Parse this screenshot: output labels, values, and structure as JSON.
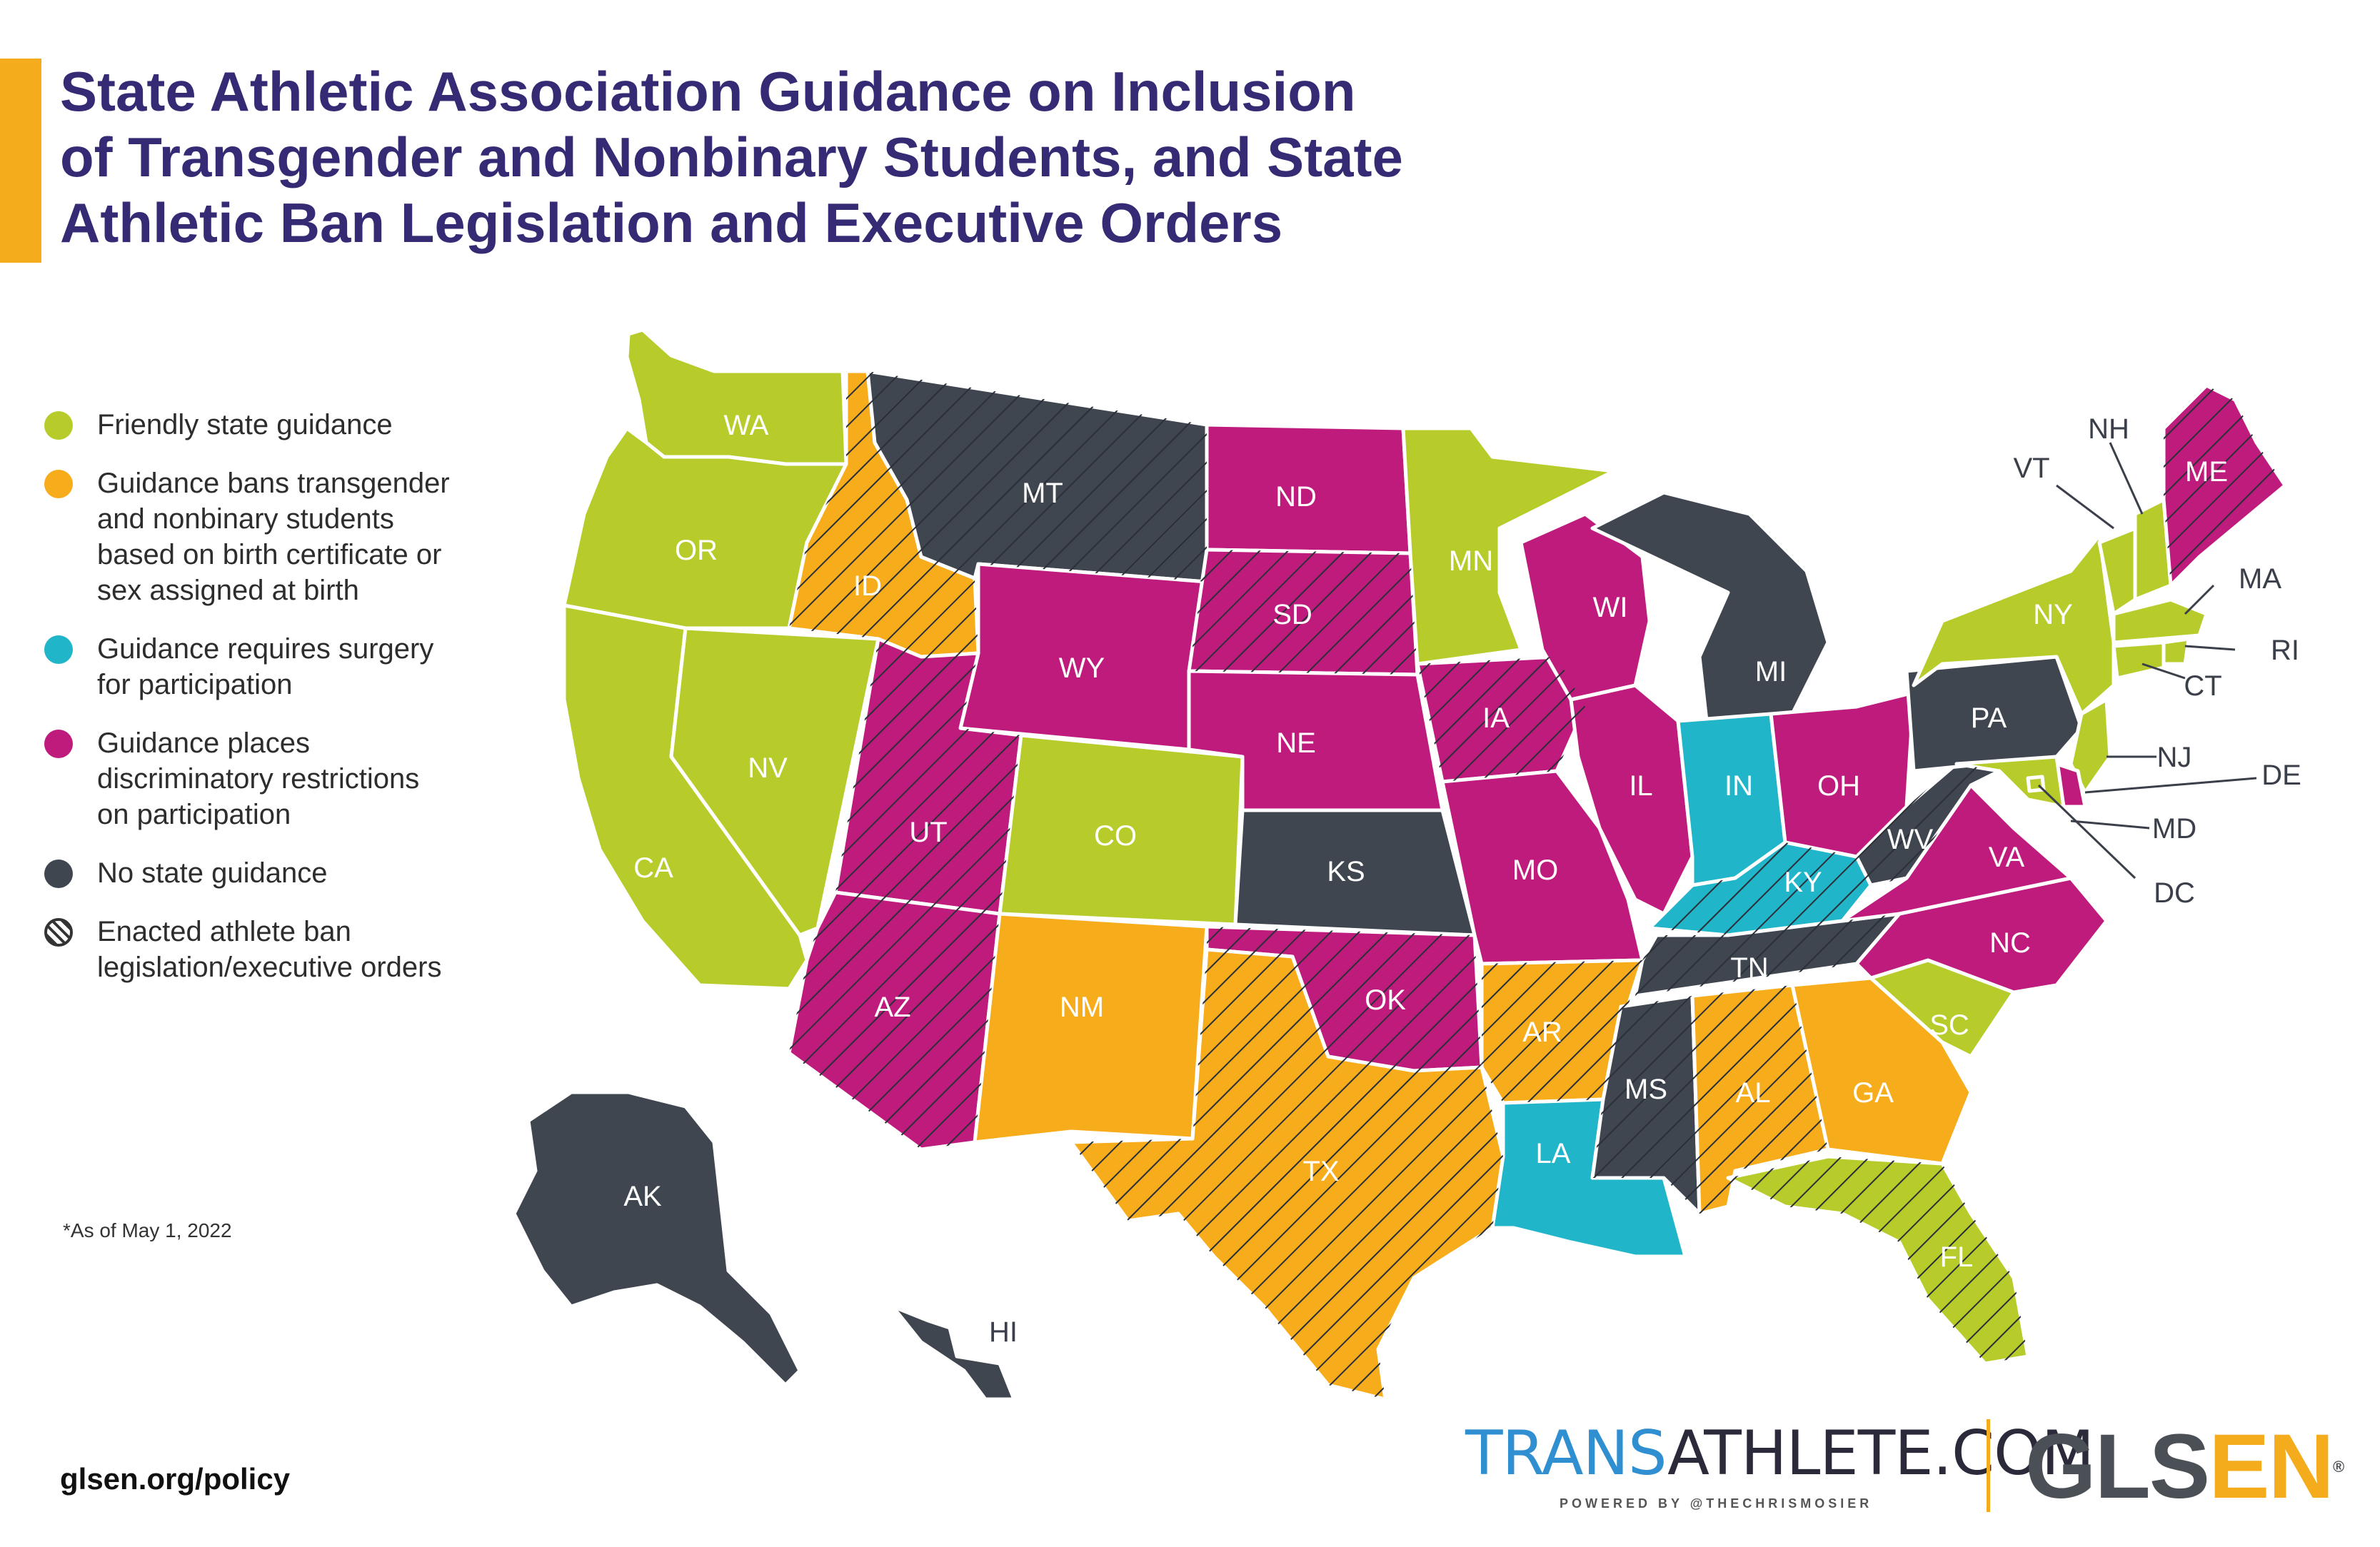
{
  "title_lines": [
    "State Athletic Association Guidance on Inclusion",
    "of Transgender and Nonbinary Students, and State",
    "Athletic Ban Legislation and Executive Orders"
  ],
  "colors": {
    "friendly": "#b7cc2a",
    "bans": "#f7ac1c",
    "surgery": "#21b5c9",
    "restrictions": "#be1b7d",
    "none": "#3f464f",
    "accent": "#f4ab1c",
    "title": "#352b74"
  },
  "legend": [
    {
      "key": "friendly",
      "label": "Friendly state guidance"
    },
    {
      "key": "bans",
      "label": "Guidance bans transgender and nonbinary students based on birth certificate or sex assigned at birth"
    },
    {
      "key": "surgery",
      "label": "Guidance requires surgery for participation"
    },
    {
      "key": "restrictions",
      "label": "Guidance places discriminatory restrictions on participation"
    },
    {
      "key": "none",
      "label": "No state guidance"
    },
    {
      "key": "ban_law",
      "label": "Enacted athlete ban legislation/executive orders"
    }
  ],
  "note": "*As of May 1, 2022",
  "footer_url": "glsen.org/policy",
  "brand": {
    "trans_part1": "TRANS",
    "trans_part2": "ATHLETE.COM",
    "powered": "POWERED BY @THECHRISMOSIER",
    "glsen_part1": "GLS",
    "glsen_part2": "EN",
    "reg": "®"
  },
  "states": [
    {
      "code": "WA",
      "category": "friendly",
      "ban": false
    },
    {
      "code": "OR",
      "category": "friendly",
      "ban": false
    },
    {
      "code": "CA",
      "category": "friendly",
      "ban": false
    },
    {
      "code": "NV",
      "category": "friendly",
      "ban": false
    },
    {
      "code": "ID",
      "category": "bans",
      "ban": true
    },
    {
      "code": "MT",
      "category": "none",
      "ban": true
    },
    {
      "code": "WY",
      "category": "restrictions",
      "ban": false
    },
    {
      "code": "UT",
      "category": "restrictions",
      "ban": true
    },
    {
      "code": "AZ",
      "category": "restrictions",
      "ban": true
    },
    {
      "code": "CO",
      "category": "friendly",
      "ban": false
    },
    {
      "code": "NM",
      "category": "bans",
      "ban": false
    },
    {
      "code": "ND",
      "category": "restrictions",
      "ban": false
    },
    {
      "code": "SD",
      "category": "restrictions",
      "ban": true
    },
    {
      "code": "NE",
      "category": "restrictions",
      "ban": false
    },
    {
      "code": "KS",
      "category": "none",
      "ban": false
    },
    {
      "code": "OK",
      "category": "restrictions",
      "ban": true
    },
    {
      "code": "TX",
      "category": "bans",
      "ban": true
    },
    {
      "code": "MN",
      "category": "friendly",
      "ban": false
    },
    {
      "code": "IA",
      "category": "restrictions",
      "ban": true
    },
    {
      "code": "MO",
      "category": "restrictions",
      "ban": false
    },
    {
      "code": "AR",
      "category": "bans",
      "ban": true
    },
    {
      "code": "LA",
      "category": "surgery",
      "ban": false
    },
    {
      "code": "WI",
      "category": "restrictions",
      "ban": false
    },
    {
      "code": "IL",
      "category": "restrictions",
      "ban": false
    },
    {
      "code": "MI",
      "category": "none",
      "ban": false
    },
    {
      "code": "IN",
      "category": "surgery",
      "ban": false
    },
    {
      "code": "KY",
      "category": "surgery",
      "ban": true
    },
    {
      "code": "TN",
      "category": "none",
      "ban": true
    },
    {
      "code": "MS",
      "category": "none",
      "ban": true
    },
    {
      "code": "AL",
      "category": "bans",
      "ban": true
    },
    {
      "code": "GA",
      "category": "bans",
      "ban": false
    },
    {
      "code": "FL",
      "category": "friendly",
      "ban": true
    },
    {
      "code": "SC",
      "category": "friendly",
      "ban": false
    },
    {
      "code": "NC",
      "category": "restrictions",
      "ban": false
    },
    {
      "code": "VA",
      "category": "restrictions",
      "ban": false
    },
    {
      "code": "WV",
      "category": "none",
      "ban": true
    },
    {
      "code": "OH",
      "category": "restrictions",
      "ban": false
    },
    {
      "code": "PA",
      "category": "none",
      "ban": false
    },
    {
      "code": "NY",
      "category": "friendly",
      "ban": false
    },
    {
      "code": "VT",
      "category": "friendly",
      "ban": false
    },
    {
      "code": "NH",
      "category": "friendly",
      "ban": false
    },
    {
      "code": "ME",
      "category": "restrictions",
      "ban": true
    },
    {
      "code": "MA",
      "category": "friendly",
      "ban": false
    },
    {
      "code": "RI",
      "category": "friendly",
      "ban": false
    },
    {
      "code": "CT",
      "category": "friendly",
      "ban": false
    },
    {
      "code": "NJ",
      "category": "friendly",
      "ban": false
    },
    {
      "code": "DE",
      "category": "restrictions",
      "ban": false
    },
    {
      "code": "MD",
      "category": "friendly",
      "ban": false
    },
    {
      "code": "DC",
      "category": "friendly",
      "ban": false
    },
    {
      "code": "AK",
      "category": "none",
      "ban": false
    },
    {
      "code": "HI",
      "category": "none",
      "ban": false
    }
  ]
}
